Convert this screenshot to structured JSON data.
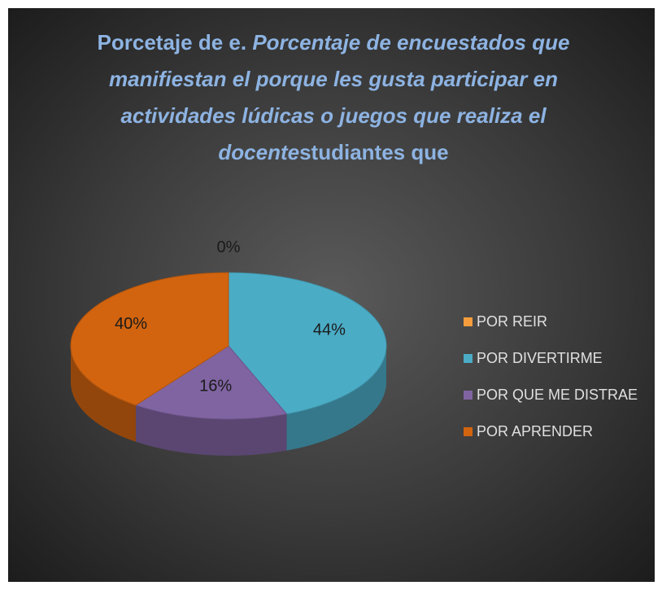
{
  "chart_data": {
    "type": "pie3d",
    "title": [
      "Porcetaje de e.",
      "Porcentaje de encuestados que manifiestan el porque les gusta participar en actividades lúdicas o juegos que realiza el docente",
      "studiantes que"
    ],
    "categories": [
      "POR REIR",
      "POR DIVERTIRME",
      "POR QUE ME DISTRAE",
      "POR APRENDER"
    ],
    "values": [
      0,
      44,
      16,
      40
    ],
    "value_labels": [
      "0%",
      "44%",
      "16%",
      "40%"
    ],
    "colors": [
      "#f59d3d",
      "#4bacc6",
      "#8064a2",
      "#d2640f"
    ],
    "legend": "right"
  }
}
